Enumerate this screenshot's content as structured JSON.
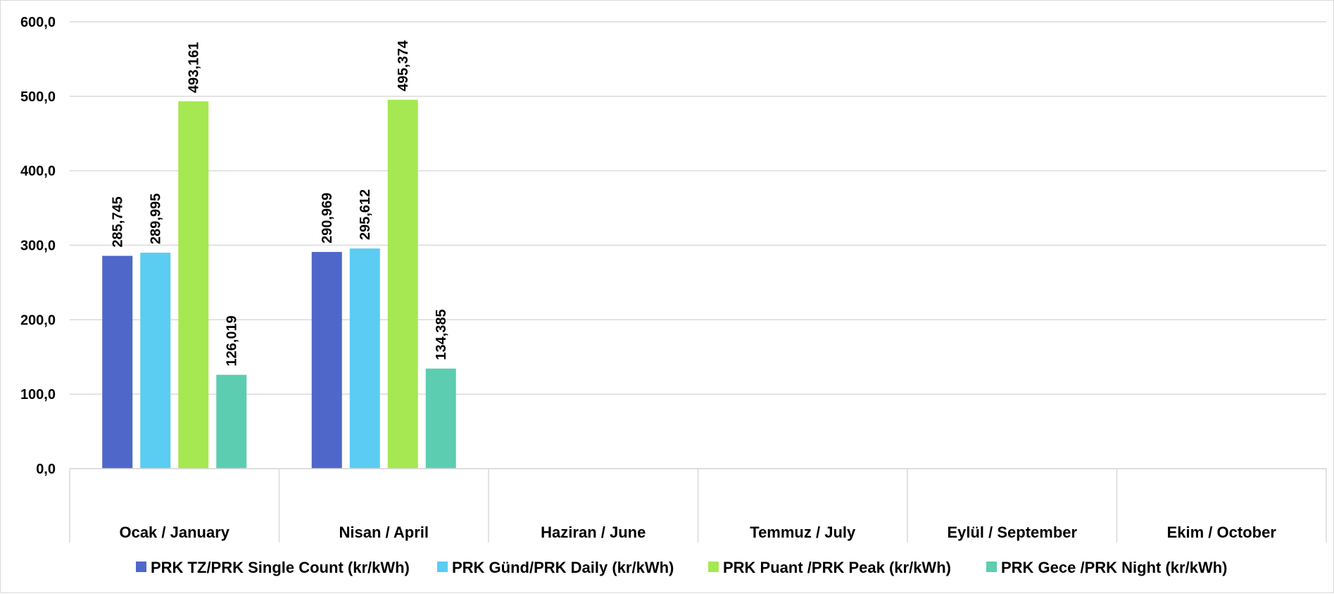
{
  "chart_data": {
    "type": "bar",
    "categories": [
      "Ocak / January",
      "Nisan / April",
      "Haziran / June",
      "Temmuz / July",
      "Eylül / September",
      "Ekim / October"
    ],
    "series": [
      {
        "name": "PRK TZ/PRK Single Count (kr/kWh)",
        "color": "#4F67C9",
        "values": [
          285.745,
          290.969,
          null,
          null,
          null,
          null
        ],
        "labels": [
          "285,745",
          "290,969",
          "",
          "",
          "",
          ""
        ]
      },
      {
        "name": "PRK Günd/PRK Daily (kr/kWh)",
        "color": "#5BCCF2",
        "values": [
          289.995,
          295.612,
          null,
          null,
          null,
          null
        ],
        "labels": [
          "289,995",
          "295,612",
          "",
          "",
          "",
          ""
        ]
      },
      {
        "name": "PRK Puant /PRK Peak (kr/kWh)",
        "color": "#A6E851",
        "values": [
          493.161,
          495.374,
          null,
          null,
          null,
          null
        ],
        "labels": [
          "493,161",
          "495,374",
          "",
          "",
          "",
          ""
        ]
      },
      {
        "name": "PRK Gece /PRK Night (kr/kWh)",
        "color": "#5CCDB1",
        "values": [
          126.019,
          134.385,
          null,
          null,
          null,
          null
        ],
        "labels": [
          "126,019",
          "134,385",
          "",
          "",
          "",
          ""
        ]
      }
    ],
    "ylim": [
      0,
      600
    ],
    "yticks": [
      0,
      100,
      200,
      300,
      400,
      500,
      600
    ],
    "ytick_labels": [
      "0,0",
      "100,0",
      "200,0",
      "300,0",
      "400,0",
      "500,0",
      "600,0"
    ],
    "grid": true,
    "legend": "bottom"
  }
}
